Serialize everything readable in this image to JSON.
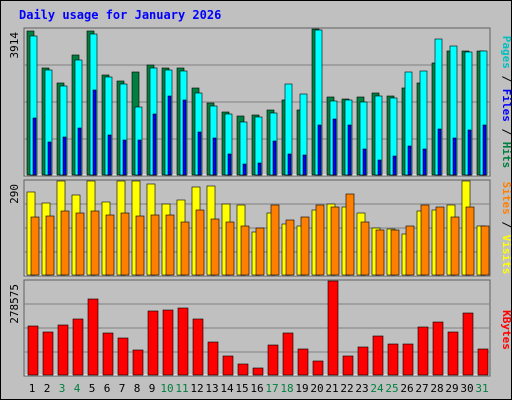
{
  "chart_data": [
    {
      "type": "bar",
      "title": "Daily usage for January 2026",
      "categories": [
        "1",
        "2",
        "3",
        "4",
        "5",
        "6",
        "7",
        "8",
        "9",
        "10",
        "11",
        "12",
        "13",
        "14",
        "15",
        "16",
        "17",
        "18",
        "19",
        "20",
        "21",
        "22",
        "23",
        "24",
        "25",
        "26",
        "27",
        "28",
        "29",
        "30",
        "31"
      ],
      "weekend_days": [
        "3",
        "4",
        "10",
        "11",
        "17",
        "18",
        "24",
        "25",
        "31"
      ],
      "axis_max_label": "3914",
      "ylim": [
        0,
        3914
      ],
      "grid": true,
      "legend": {
        "position": "right",
        "labels": [
          "Pages",
          "Files",
          "Hits"
        ],
        "separator": "/"
      },
      "series": [
        {
          "name": "Hits",
          "color": "#008040",
          "values": [
            3870,
            2880,
            2460,
            3220,
            3850,
            2690,
            2520,
            2760,
            2950,
            2880,
            2860,
            2340,
            1940,
            1700,
            1590,
            1610,
            1750,
            2000,
            1750,
            3950,
            2080,
            2040,
            2080,
            2190,
            2130,
            2340,
            2460,
            3000,
            3330,
            3330,
            3330
          ]
        },
        {
          "name": "Files",
          "color": "#00ffff",
          "values": [
            3730,
            2820,
            2380,
            3070,
            3780,
            2620,
            2440,
            1830,
            2880,
            2810,
            2790,
            2210,
            1850,
            1640,
            1420,
            1560,
            1670,
            2440,
            2160,
            3890,
            1990,
            2000,
            1960,
            2130,
            2070,
            2760,
            2790,
            3650,
            3450,
            3300,
            3330
          ]
        },
        {
          "name": "Pages",
          "color": "#0000ff",
          "values": [
            1520,
            880,
            1020,
            1270,
            2270,
            1060,
            940,
            930,
            1640,
            2120,
            2000,
            1140,
            990,
            560,
            300,
            330,
            910,
            550,
            530,
            1340,
            1490,
            1350,
            700,
            400,
            520,
            770,
            690,
            1240,
            990,
            1200,
            1330
          ]
        }
      ]
    },
    {
      "type": "bar",
      "categories": [
        "1",
        "2",
        "3",
        "4",
        "5",
        "6",
        "7",
        "8",
        "9",
        "10",
        "11",
        "12",
        "13",
        "14",
        "15",
        "16",
        "17",
        "18",
        "19",
        "20",
        "21",
        "22",
        "23",
        "24",
        "25",
        "26",
        "27",
        "28",
        "29",
        "30",
        "31"
      ],
      "axis_max_label": "290",
      "ylim": [
        0,
        290
      ],
      "grid": true,
      "legend": {
        "position": "right",
        "labels": [
          "Sites",
          "Visits"
        ],
        "separator": "/"
      },
      "series": [
        {
          "name": "Visits",
          "color": "#ffff00",
          "values": [
            256,
            222,
            290,
            248,
            295,
            226,
            290,
            290,
            280,
            218,
            232,
            270,
            275,
            219,
            215,
            132,
            190,
            158,
            152,
            200,
            219,
            210,
            192,
            145,
            142,
            128,
            197,
            200,
            216,
            295,
            150
          ]
        },
        {
          "name": "Sites",
          "color": "#ff8000",
          "values": [
            180,
            181,
            197,
            190,
            196,
            186,
            192,
            182,
            186,
            186,
            162,
            200,
            172,
            165,
            150,
            145,
            215,
            169,
            180,
            215,
            210,
            250,
            165,
            140,
            140,
            150,
            215,
            210,
            180,
            210,
            150
          ]
        }
      ]
    },
    {
      "type": "bar",
      "categories": [
        "1",
        "2",
        "3",
        "4",
        "5",
        "6",
        "7",
        "8",
        "9",
        "10",
        "11",
        "12",
        "13",
        "14",
        "15",
        "16",
        "17",
        "18",
        "19",
        "20",
        "21",
        "22",
        "23",
        "24",
        "25",
        "26",
        "27",
        "28",
        "29",
        "30",
        "31"
      ],
      "axis_max_label": "278575",
      "ylim": [
        0,
        278575
      ],
      "grid": true,
      "legend": {
        "position": "right",
        "labels": [
          "KBytes"
        ]
      },
      "series": [
        {
          "name": "KBytes",
          "color": "#ff0000",
          "values": [
            145000,
            127000,
            148000,
            166000,
            226000,
            124000,
            110000,
            73000,
            191000,
            193000,
            200000,
            166000,
            99000,
            56000,
            33000,
            22000,
            89000,
            124000,
            77000,
            41000,
            282000,
            56000,
            82000,
            116000,
            93000,
            91000,
            143000,
            158000,
            126000,
            183000,
            77000
          ]
        }
      ]
    }
  ],
  "colors": {
    "background": "#c0c0c0",
    "plot_bg": "#c0c0c0",
    "title": "#0000ff",
    "grid": "#808080"
  }
}
